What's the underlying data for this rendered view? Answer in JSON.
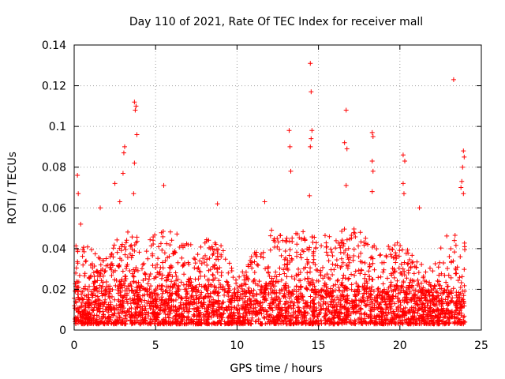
{
  "chart_data": {
    "type": "scatter",
    "title": "Day 110 of 2021, Rate Of TEC Index for receiver mall",
    "xlabel": "GPS time / hours",
    "ylabel": "ROTI / TECUs",
    "xlim": [
      0,
      25
    ],
    "ylim": [
      0,
      0.14
    ],
    "xticks": [
      0,
      5,
      10,
      15,
      20,
      25
    ],
    "xtick_labels": [
      "0",
      "5",
      "10",
      "15",
      "20",
      "25"
    ],
    "yticks": [
      0,
      0.02,
      0.04,
      0.06,
      0.08,
      0.1,
      0.12,
      0.14
    ],
    "ytick_labels": [
      "0",
      "0.02",
      "0.04",
      "0.06",
      "0.08",
      "0.1",
      "0.12",
      "0.14"
    ],
    "grid": true,
    "marker": "+",
    "series": [
      {
        "name": "ROTI",
        "color": "#ff0000",
        "x_range": [
          0,
          24
        ],
        "peaks": [
          {
            "x": 0.2,
            "y": 0.076
          },
          {
            "x": 0.25,
            "y": 0.067
          },
          {
            "x": 0.4,
            "y": 0.052
          },
          {
            "x": 1.6,
            "y": 0.06
          },
          {
            "x": 2.5,
            "y": 0.072
          },
          {
            "x": 2.8,
            "y": 0.063
          },
          {
            "x": 3.0,
            "y": 0.077
          },
          {
            "x": 3.05,
            "y": 0.087
          },
          {
            "x": 3.1,
            "y": 0.09
          },
          {
            "x": 3.7,
            "y": 0.112
          },
          {
            "x": 3.75,
            "y": 0.108
          },
          {
            "x": 3.8,
            "y": 0.11
          },
          {
            "x": 3.85,
            "y": 0.096
          },
          {
            "x": 3.7,
            "y": 0.082
          },
          {
            "x": 3.65,
            "y": 0.067
          },
          {
            "x": 5.5,
            "y": 0.071
          },
          {
            "x": 8.8,
            "y": 0.062
          },
          {
            "x": 11.7,
            "y": 0.063
          },
          {
            "x": 13.2,
            "y": 0.098
          },
          {
            "x": 13.25,
            "y": 0.09
          },
          {
            "x": 13.3,
            "y": 0.078
          },
          {
            "x": 14.5,
            "y": 0.131
          },
          {
            "x": 14.55,
            "y": 0.117
          },
          {
            "x": 14.6,
            "y": 0.098
          },
          {
            "x": 14.55,
            "y": 0.094
          },
          {
            "x": 14.5,
            "y": 0.09
          },
          {
            "x": 14.45,
            "y": 0.066
          },
          {
            "x": 16.7,
            "y": 0.108
          },
          {
            "x": 16.6,
            "y": 0.092
          },
          {
            "x": 16.75,
            "y": 0.089
          },
          {
            "x": 16.7,
            "y": 0.071
          },
          {
            "x": 18.3,
            "y": 0.097
          },
          {
            "x": 18.35,
            "y": 0.095
          },
          {
            "x": 18.3,
            "y": 0.083
          },
          {
            "x": 18.35,
            "y": 0.078
          },
          {
            "x": 18.3,
            "y": 0.068
          },
          {
            "x": 20.2,
            "y": 0.086
          },
          {
            "x": 20.3,
            "y": 0.083
          },
          {
            "x": 20.2,
            "y": 0.072
          },
          {
            "x": 20.25,
            "y": 0.067
          },
          {
            "x": 21.2,
            "y": 0.06
          },
          {
            "x": 23.3,
            "y": 0.123
          },
          {
            "x": 23.9,
            "y": 0.088
          },
          {
            "x": 23.95,
            "y": 0.085
          },
          {
            "x": 23.85,
            "y": 0.08
          },
          {
            "x": 23.8,
            "y": 0.073
          },
          {
            "x": 23.75,
            "y": 0.07
          },
          {
            "x": 23.9,
            "y": 0.067
          }
        ],
        "envelope": [
          {
            "x": 0,
            "y": 0.045
          },
          {
            "x": 1,
            "y": 0.04
          },
          {
            "x": 2,
            "y": 0.035
          },
          {
            "x": 3,
            "y": 0.05
          },
          {
            "x": 4,
            "y": 0.045
          },
          {
            "x": 5,
            "y": 0.048
          },
          {
            "x": 6,
            "y": 0.05
          },
          {
            "x": 7,
            "y": 0.042
          },
          {
            "x": 8,
            "y": 0.045
          },
          {
            "x": 9,
            "y": 0.042
          },
          {
            "x": 10,
            "y": 0.025
          },
          {
            "x": 11,
            "y": 0.04
          },
          {
            "x": 12,
            "y": 0.05
          },
          {
            "x": 13,
            "y": 0.045
          },
          {
            "x": 14,
            "y": 0.05
          },
          {
            "x": 15,
            "y": 0.045
          },
          {
            "x": 16,
            "y": 0.05
          },
          {
            "x": 17,
            "y": 0.052
          },
          {
            "x": 18,
            "y": 0.045
          },
          {
            "x": 19,
            "y": 0.04
          },
          {
            "x": 20,
            "y": 0.045
          },
          {
            "x": 21,
            "y": 0.035
          },
          {
            "x": 22,
            "y": 0.03
          },
          {
            "x": 23,
            "y": 0.05
          },
          {
            "x": 24,
            "y": 0.045
          }
        ]
      }
    ]
  }
}
